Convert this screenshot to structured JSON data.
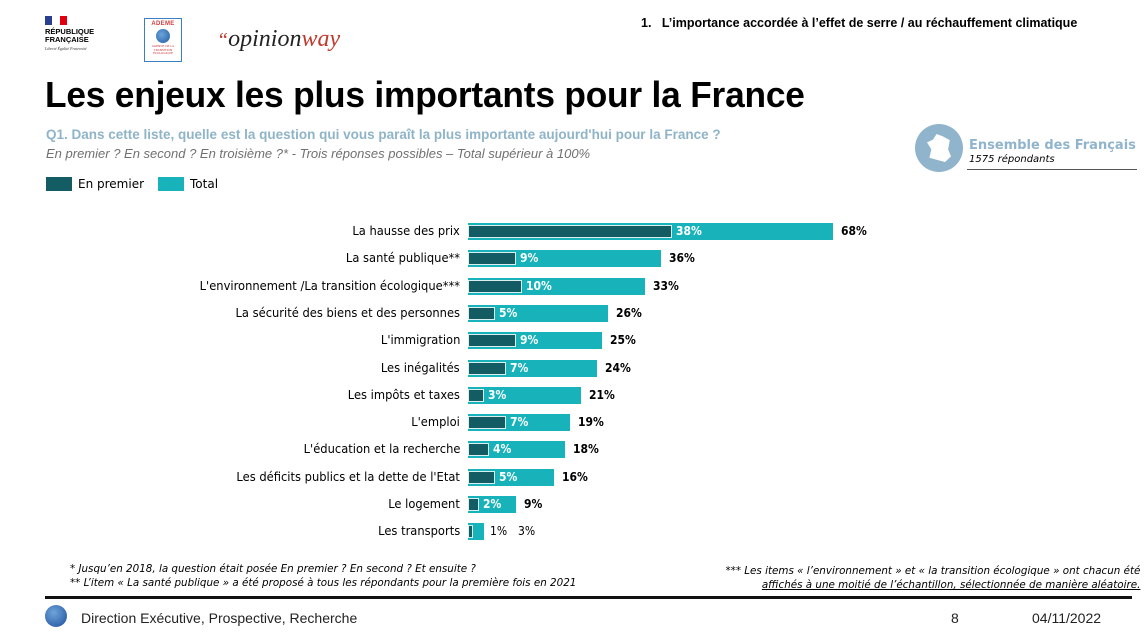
{
  "header": {
    "logos": {
      "republique": {
        "line1": "RÉPUBLIQUE",
        "line2": "FRANÇAISE",
        "motto": "Liberté Égalité Fraternité"
      },
      "ademe": {
        "name": "ADEME",
        "subtitle": "AGENCE DE LA TRANSITION ÉCOLOGIQUE"
      },
      "opinionway": {
        "quote": "“",
        "part1": "opinion",
        "part2": "way"
      }
    },
    "section_title": "1.   L’importance accordée à l’effet de serre / au réchauffement climatique",
    "page_title": "Les enjeux les plus importants pour la France",
    "question": "Q1. Dans cette liste, quelle est la question qui vous paraît la plus importante aujourd'hui pour la France ?",
    "question_sub": "En premier ? En second ? En troisième ?* - Trois réponses possibles – Total supérieur à 100%",
    "sample": {
      "title": "Ensemble des Français",
      "subtitle": "1575 répondants",
      "icon": "france-map-icon"
    }
  },
  "colors": {
    "en_premier": "#145c63",
    "total": "#17b2ba",
    "question": "#8fb4c8",
    "sample": "#8fb4cc"
  },
  "chart_data": {
    "type": "bar",
    "orientation": "horizontal",
    "title": "Les enjeux les plus importants pour la France",
    "legend": [
      "En premier",
      "Total"
    ],
    "legend_position": "top-left",
    "categories": [
      "La hausse des prix",
      "La santé publique**",
      "L'environnement /La transition écologique***",
      "La sécurité des biens et des personnes",
      "L'immigration",
      "Les inégalités",
      "Les impôts et taxes",
      "L'emploi",
      "L'éducation et la recherche",
      "Les déficits publics et la dette de l'Etat",
      "Le logement",
      "Les transports"
    ],
    "series": [
      {
        "name": "En premier",
        "values": [
          38,
          9,
          10,
          5,
          9,
          7,
          3,
          7,
          4,
          5,
          2,
          1
        ],
        "labels": [
          "38%",
          "9%",
          "10%",
          "5%",
          "9%",
          "7%",
          "3%",
          "7%",
          "4%",
          "5%",
          "2%",
          "1%"
        ]
      },
      {
        "name": "Total",
        "values": [
          68,
          36,
          33,
          26,
          25,
          24,
          21,
          19,
          18,
          16,
          9,
          3
        ],
        "labels": [
          "68%",
          "36%",
          "33%",
          "26%",
          "25%",
          "24%",
          "21%",
          "19%",
          "18%",
          "16%",
          "9%",
          "3%"
        ]
      }
    ],
    "unit": "%",
    "xlim": [
      0,
      100
    ],
    "grid": false
  },
  "footnotes": {
    "left": [
      "* Jusqu’en 2018, la question était posée En premier ? En second ?  Et ensuite ?",
      "** L’item « La santé publique » a été proposé à tous les répondants pour la première fois en 2021"
    ],
    "right": [
      "*** Les items « l’environnement » et « la transition écologique » ont chacun été",
      "affichés à une moitié de l’échantillon, sélectionnée de manière aléatoire."
    ]
  },
  "footer": {
    "department": "Direction Exécutive, Prospective, Recherche",
    "page_number": "8",
    "date": "04/11/2022"
  }
}
